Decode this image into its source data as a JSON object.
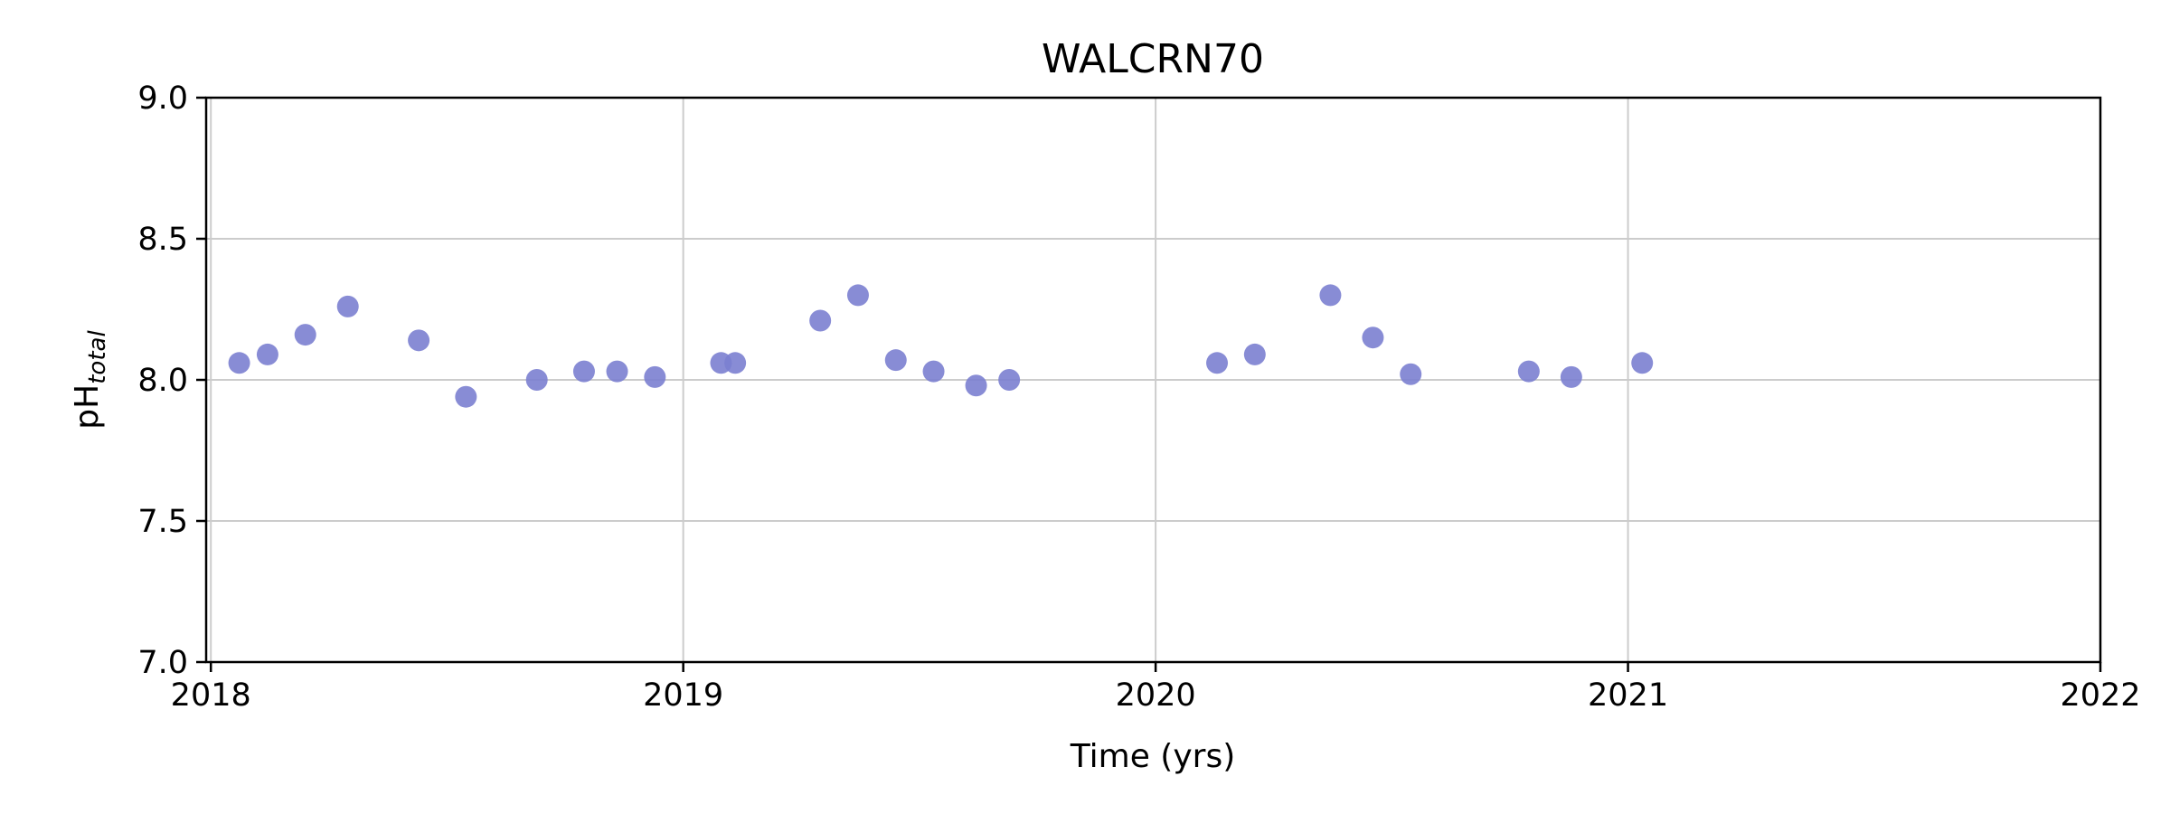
{
  "chart_data": {
    "type": "scatter",
    "title": "WALCRN70",
    "xlabel": "Time (yrs)",
    "ylabel": {
      "main": "pH",
      "sub": "total"
    },
    "xlim": [
      2017.99,
      2022.0
    ],
    "ylim": [
      7.0,
      9.0
    ],
    "xticks": [
      2018,
      2019,
      2020,
      2021,
      2022
    ],
    "yticks": [
      7.0,
      7.5,
      8.0,
      8.5,
      9.0
    ],
    "ytick_labels": [
      "7.0",
      "7.5",
      "8.0",
      "8.5",
      "9.0"
    ],
    "grid": true,
    "marker_color": "#7b7fd0",
    "series": [
      {
        "x": [
          2018.06,
          2018.12,
          2018.2,
          2018.29,
          2018.44,
          2018.54,
          2018.69,
          2018.79,
          2018.86,
          2018.94,
          2019.08,
          2019.11,
          2019.29,
          2019.37,
          2019.45,
          2019.53,
          2019.62,
          2019.69,
          2020.13,
          2020.21,
          2020.37,
          2020.46,
          2020.54,
          2020.79,
          2020.88,
          2021.03
        ],
        "y": [
          8.06,
          8.09,
          8.16,
          8.26,
          8.14,
          7.94,
          8.0,
          8.03,
          8.03,
          8.01,
          8.06,
          8.06,
          8.21,
          8.3,
          8.07,
          8.03,
          7.98,
          8.0,
          8.06,
          8.09,
          8.3,
          8.15,
          8.02,
          8.03,
          8.01,
          8.06
        ]
      }
    ]
  }
}
